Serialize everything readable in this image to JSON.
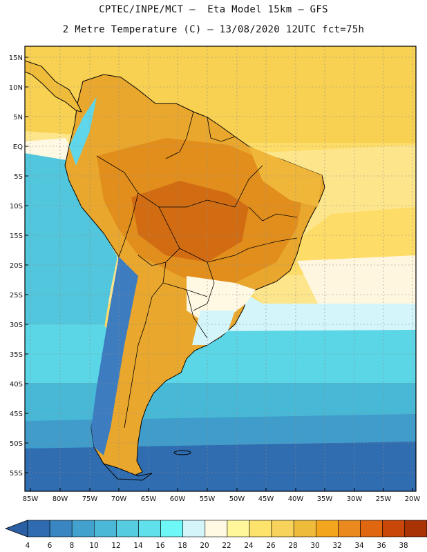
{
  "header": {
    "line1": "CPTEC/INPE/MCT –  Eta Model 15km – GFS",
    "line2": "2 Metre Temperature (C) – 13/08/2020 12UTC fct=75h"
  },
  "axes": {
    "lat_labels": [
      "15N",
      "10N",
      "5N",
      "EQ",
      "5S",
      "10S",
      "15S",
      "20S",
      "25S",
      "30S",
      "35S",
      "40S",
      "45S",
      "50S",
      "55S"
    ],
    "lon_labels": [
      "85W",
      "80W",
      "75W",
      "70W",
      "65W",
      "60W",
      "55W",
      "50W",
      "45W",
      "40W",
      "35W",
      "30W",
      "25W",
      "20W"
    ]
  },
  "colorbar": {
    "labels": [
      "4",
      "6",
      "8",
      "10",
      "12",
      "14",
      "16",
      "18",
      "20",
      "22",
      "24",
      "26",
      "28",
      "30",
      "32",
      "34",
      "36",
      "38"
    ],
    "colors": [
      "#2e6bb0",
      "#3a86c2",
      "#43a1ce",
      "#4cb8d8",
      "#55cce0",
      "#5fe0ea",
      "#6ef7f7",
      "#d4f6fb",
      "#fff8e2",
      "#fff79a",
      "#fde26b",
      "#f8d35c",
      "#efbb3b",
      "#f3a51d",
      "#ea8a1e",
      "#e0660f",
      "#c94809",
      "#a93305"
    ],
    "low_color": "#2a5fa3",
    "high_color": "#a93305"
  },
  "legend_colors": {
    "ocean_deep": "#2d62aa",
    "ocean_mid": "#45b7d8",
    "ocean_warm": "#fcd65e",
    "border": "#000000"
  }
}
